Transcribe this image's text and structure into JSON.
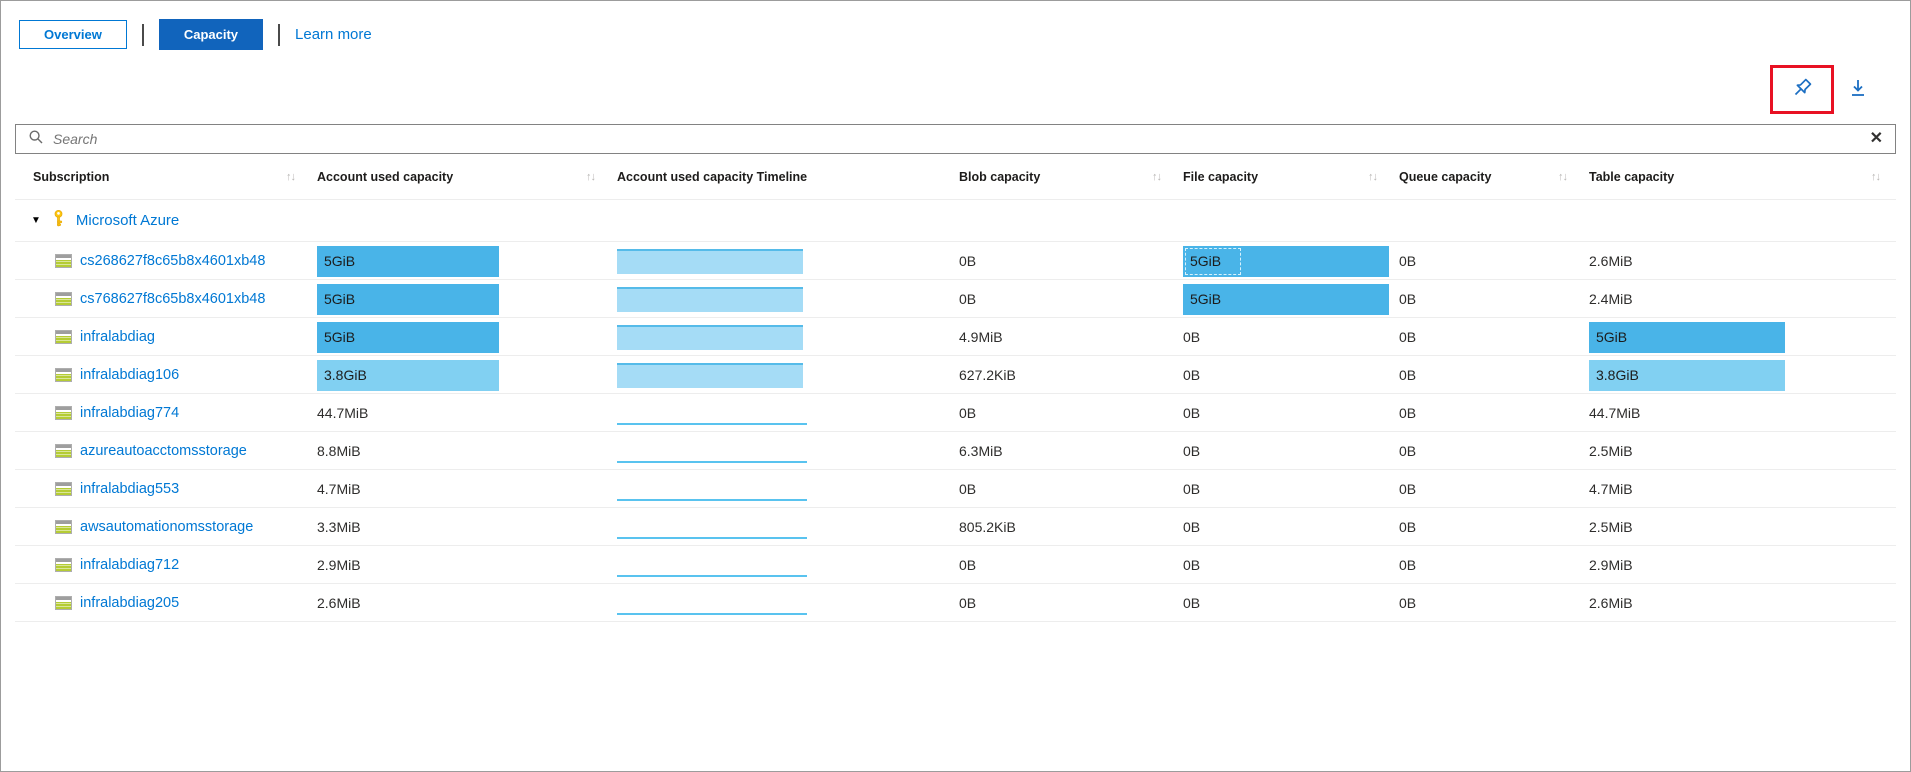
{
  "tabs": {
    "overview": "Overview",
    "capacity": "Capacity",
    "learn_more": "Learn more"
  },
  "toolbar": {
    "pin_icon": "pushpin",
    "download_icon": "download",
    "pin_highlighted": true
  },
  "search": {
    "placeholder": "Search",
    "value": "",
    "clear_icon": "✕"
  },
  "icons": {
    "sort": "↑↓",
    "expand": "▼",
    "key": "key",
    "storage_account": "storage-account"
  },
  "colors": {
    "accent": "#0078d4",
    "capacity_tab_bg": "#1164bc",
    "bar_dark": "#49b4e8",
    "bar_light": "#81d0f2",
    "timeline_fill": "#a5dcf6",
    "timeline_line": "#59c3ef",
    "highlight_red": "#e81123"
  },
  "table": {
    "columns": [
      {
        "label": "Subscription",
        "sortable": true
      },
      {
        "label": "Account used capacity",
        "sortable": true
      },
      {
        "label": "Account used capacity Timeline",
        "sortable": false
      },
      {
        "label": "Blob capacity",
        "sortable": true
      },
      {
        "label": "File capacity",
        "sortable": true
      },
      {
        "label": "Queue capacity",
        "sortable": true
      },
      {
        "label": "Table capacity",
        "sortable": true
      }
    ],
    "group": {
      "label": "Microsoft Azure",
      "expanded": true
    },
    "rows": [
      {
        "name": "cs268627f8c65b8x4601xb48",
        "account_used": {
          "text": "5GiB",
          "bar": "dark"
        },
        "timeline": "area",
        "blob": "0B",
        "file": {
          "text": "5GiB",
          "bar": "dark",
          "focused": true
        },
        "queue": "0B",
        "table": {
          "text": "2.6MiB",
          "bar": null
        }
      },
      {
        "name": "cs768627f8c65b8x4601xb48",
        "account_used": {
          "text": "5GiB",
          "bar": "dark"
        },
        "timeline": "area",
        "blob": "0B",
        "file": {
          "text": "5GiB",
          "bar": "dark",
          "focused": false
        },
        "queue": "0B",
        "table": {
          "text": "2.4MiB",
          "bar": null
        }
      },
      {
        "name": "infralabdiag",
        "account_used": {
          "text": "5GiB",
          "bar": "dark"
        },
        "timeline": "area",
        "blob": "4.9MiB",
        "file": {
          "text": "0B",
          "bar": null,
          "focused": false
        },
        "queue": "0B",
        "table": {
          "text": "5GiB",
          "bar": "dark"
        }
      },
      {
        "name": "infralabdiag106",
        "account_used": {
          "text": "3.8GiB",
          "bar": "light"
        },
        "timeline": "area",
        "blob": "627.2KiB",
        "file": {
          "text": "0B",
          "bar": null,
          "focused": false
        },
        "queue": "0B",
        "table": {
          "text": "3.8GiB",
          "bar": "light"
        }
      },
      {
        "name": "infralabdiag774",
        "account_used": {
          "text": "44.7MiB",
          "bar": null
        },
        "timeline": "line",
        "blob": "0B",
        "file": {
          "text": "0B",
          "bar": null,
          "focused": false
        },
        "queue": "0B",
        "table": {
          "text": "44.7MiB",
          "bar": null
        }
      },
      {
        "name": "azureautoacctomsstorage",
        "account_used": {
          "text": "8.8MiB",
          "bar": null
        },
        "timeline": "line",
        "blob": "6.3MiB",
        "file": {
          "text": "0B",
          "bar": null,
          "focused": false
        },
        "queue": "0B",
        "table": {
          "text": "2.5MiB",
          "bar": null
        }
      },
      {
        "name": "infralabdiag553",
        "account_used": {
          "text": "4.7MiB",
          "bar": null
        },
        "timeline": "line",
        "blob": "0B",
        "file": {
          "text": "0B",
          "bar": null,
          "focused": false
        },
        "queue": "0B",
        "table": {
          "text": "4.7MiB",
          "bar": null
        }
      },
      {
        "name": "awsautomationomsstorage",
        "account_used": {
          "text": "3.3MiB",
          "bar": null
        },
        "timeline": "line",
        "blob": "805.2KiB",
        "file": {
          "text": "0B",
          "bar": null,
          "focused": false
        },
        "queue": "0B",
        "table": {
          "text": "2.5MiB",
          "bar": null
        }
      },
      {
        "name": "infralabdiag712",
        "account_used": {
          "text": "2.9MiB",
          "bar": null
        },
        "timeline": "line",
        "blob": "0B",
        "file": {
          "text": "0B",
          "bar": null,
          "focused": false
        },
        "queue": "0B",
        "table": {
          "text": "2.9MiB",
          "bar": null
        }
      },
      {
        "name": "infralabdiag205",
        "account_used": {
          "text": "2.6MiB",
          "bar": null
        },
        "timeline": "line",
        "blob": "0B",
        "file": {
          "text": "0B",
          "bar": null,
          "focused": false
        },
        "queue": "0B",
        "table": {
          "text": "2.6MiB",
          "bar": null
        }
      }
    ]
  }
}
